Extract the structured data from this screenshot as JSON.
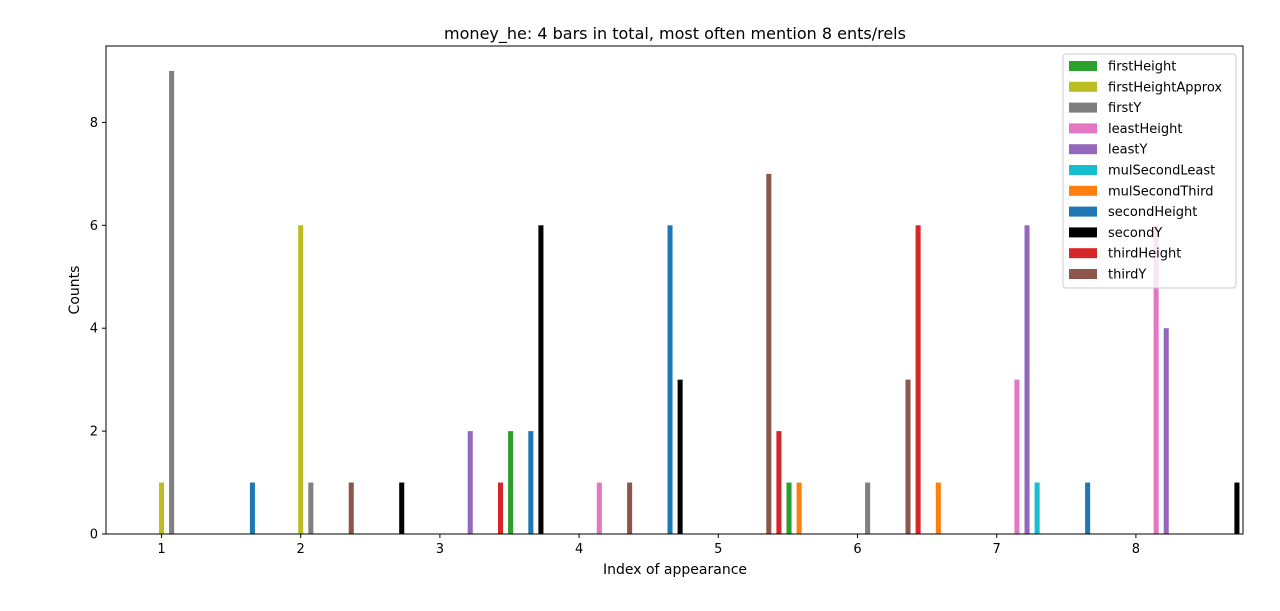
{
  "chart_data": {
    "type": "bar",
    "title": "money_he: 4 bars in total, most often mention  8 ents/rels",
    "xlabel": "Index of appearance",
    "ylabel": "Counts",
    "categories": [
      "1",
      "2",
      "3",
      "4",
      "5",
      "6",
      "7",
      "8"
    ],
    "ylim": [
      0,
      9.45
    ],
    "yticks": [
      0,
      2,
      4,
      6,
      8
    ],
    "grid": false,
    "legend_position": "upper-right",
    "series": [
      {
        "name": "firstHeight",
        "color": "#2ca02c",
        "values": [
          0,
          0,
          2,
          0,
          1,
          0,
          0,
          0
        ]
      },
      {
        "name": "firstHeightApprox",
        "color": "#bcbd22",
        "values": [
          1,
          6,
          0,
          0,
          0,
          0,
          0,
          0
        ]
      },
      {
        "name": "firstY",
        "color": "#7f7f7f",
        "values": [
          9,
          1,
          0,
          0,
          0,
          1,
          0,
          0
        ]
      },
      {
        "name": "leastHeight",
        "color": "#e377c2",
        "values": [
          0,
          0,
          0,
          1,
          0,
          0,
          3,
          6
        ]
      },
      {
        "name": "leastY",
        "color": "#9467bd",
        "values": [
          0,
          0,
          2,
          0,
          0,
          0,
          6,
          4
        ]
      },
      {
        "name": "mulSecondLeast",
        "color": "#17becf",
        "values": [
          0,
          0,
          0,
          0,
          0,
          0,
          1,
          0
        ]
      },
      {
        "name": "mulSecondThird",
        "color": "#ff7f0e",
        "values": [
          0,
          0,
          0,
          0,
          1,
          1,
          0,
          0
        ]
      },
      {
        "name": "secondHeight",
        "color": "#1f77b4",
        "values": [
          1,
          0,
          2,
          6,
          0,
          0,
          1,
          0
        ]
      },
      {
        "name": "secondY",
        "color": "#000000",
        "values": [
          0,
          1,
          6,
          3,
          0,
          0,
          0,
          1
        ]
      },
      {
        "name": "thirdHeight",
        "color": "#d62728",
        "values": [
          0,
          0,
          1,
          0,
          2,
          6,
          0,
          0
        ]
      },
      {
        "name": "thirdY",
        "color": "#8c564b",
        "values": [
          0,
          1,
          0,
          1,
          7,
          3,
          0,
          0
        ]
      }
    ],
    "bar_order": [
      "firstHeightApprox",
      "firstY",
      "leastHeight",
      "leastY",
      "mulSecondLeast",
      "thirdY",
      "thirdHeight",
      "firstHeight",
      "mulSecondThird",
      "secondHeight",
      "secondY"
    ]
  }
}
